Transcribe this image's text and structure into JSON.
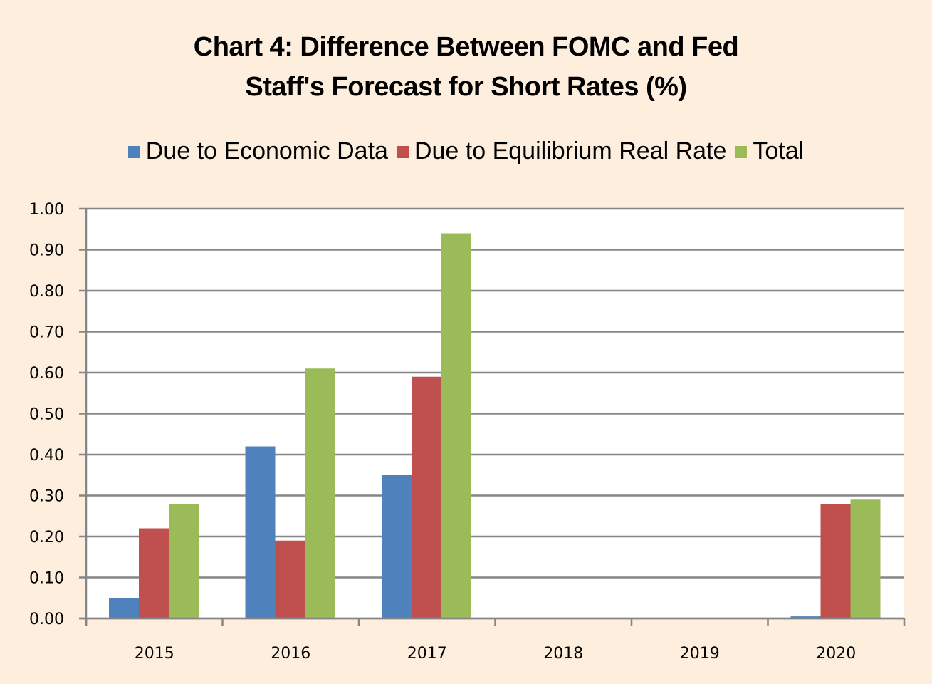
{
  "chart_data": {
    "type": "bar",
    "title_lines": [
      "Chart 4: Difference Between FOMC and Fed",
      "Staff's Forecast for Short Rates (%)"
    ],
    "xlabel": "",
    "ylabel": "",
    "categories": [
      "2015",
      "2016",
      "2017",
      "2018",
      "2019",
      "2020"
    ],
    "series": [
      {
        "name": "Due to Economic Data",
        "color": "#4f81bd",
        "values": [
          0.05,
          0.42,
          0.35,
          0,
          0,
          0.005
        ]
      },
      {
        "name": "Due to Equilibrium Real Rate",
        "color": "#c0504d",
        "values": [
          0.22,
          0.19,
          0.59,
          0,
          0,
          0.28
        ]
      },
      {
        "name": "Total",
        "color": "#9bbb59",
        "values": [
          0.28,
          0.61,
          0.94,
          0,
          0,
          0.29
        ]
      }
    ],
    "ylim": [
      0,
      1.0
    ],
    "yticks": [
      "0.00",
      "0.10",
      "0.20",
      "0.30",
      "0.40",
      "0.50",
      "0.60",
      "0.70",
      "0.80",
      "0.90",
      "1.00"
    ],
    "grid": true,
    "legend_position": "top-center"
  },
  "colors": {
    "background": "#fdeedd",
    "plot_background": "#ffffff",
    "gridline": "#868686"
  }
}
